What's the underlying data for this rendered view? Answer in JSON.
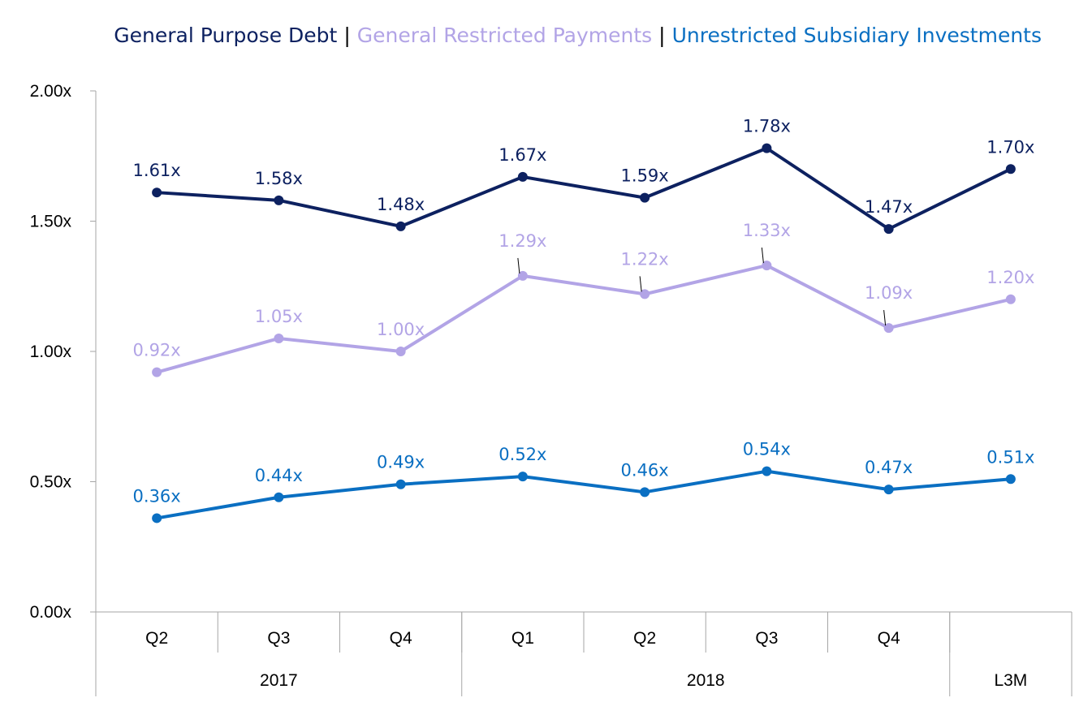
{
  "chart_data": {
    "type": "line",
    "title": "",
    "xlabel": "",
    "ylabel": "",
    "ylim": [
      0,
      2
    ],
    "y_ticks": [
      "0.00x",
      "0.50x",
      "1.00x",
      "1.50x",
      "2.00x"
    ],
    "y_tick_values": [
      0,
      0.5,
      1.0,
      1.5,
      2.0
    ],
    "categories": [
      "Q2",
      "Q3",
      "Q4",
      "Q1",
      "Q2",
      "Q3",
      "Q4",
      ""
    ],
    "groups": [
      {
        "label": "2017",
        "span": 3
      },
      {
        "label": "2018",
        "span": 4
      },
      {
        "label": "L3M",
        "span": 1
      }
    ],
    "legend_separator": "|",
    "legend_position": "top",
    "grid": false,
    "series": [
      {
        "name": "General Purpose Debt",
        "color": "#0d2160",
        "values": [
          1.61,
          1.58,
          1.48,
          1.67,
          1.59,
          1.78,
          1.47,
          1.7
        ],
        "labels": [
          "1.61x",
          "1.58x",
          "1.48x",
          "1.67x",
          "1.59x",
          "1.78x",
          "1.47x",
          "1.70x"
        ]
      },
      {
        "name": "General Restricted Payments",
        "color": "#b2a4e6",
        "values": [
          0.92,
          1.05,
          1.0,
          1.29,
          1.22,
          1.33,
          1.09,
          1.2
        ],
        "labels": [
          "0.92x",
          "1.05x",
          "1.00x",
          "1.29x",
          "1.22x",
          "1.33x",
          "1.09x",
          "1.20x"
        ]
      },
      {
        "name": "Unrestricted Subsidiary Investments",
        "color": "#0a6fc2",
        "values": [
          0.36,
          0.44,
          0.49,
          0.52,
          0.46,
          0.54,
          0.47,
          0.51
        ],
        "labels": [
          "0.36x",
          "0.44x",
          "0.49x",
          "0.52x",
          "0.46x",
          "0.54x",
          "0.47x",
          "0.51x"
        ]
      }
    ]
  }
}
